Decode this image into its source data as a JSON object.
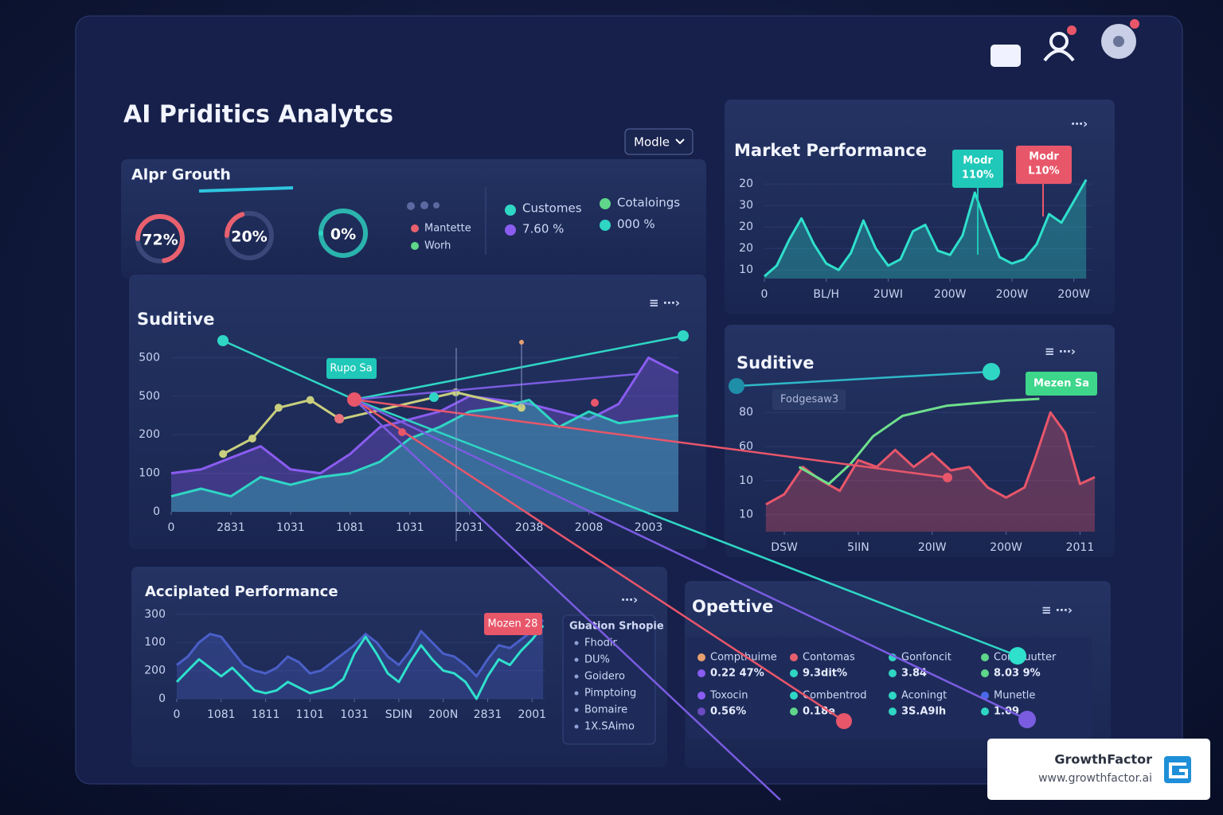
{
  "header": {
    "title": "AI Priditics Analytcs",
    "dropdown": "Modle"
  },
  "growth": {
    "title": "Alpr Grouth",
    "gauges": {
      "values": [
        72,
        20,
        0
      ],
      "value_labels": [
        "72%",
        "20%",
        "0%"
      ],
      "colors": [
        "#e8606e",
        "#e8606e",
        "#2fd6c4"
      ]
    },
    "legend": [
      {
        "label": "Mantette",
        "color": "#e8606e"
      },
      {
        "label": "Worh",
        "color": "#5fd68a"
      }
    ],
    "stats": [
      {
        "label": "Customes",
        "color": "#2fd6c4"
      },
      {
        "label": "7.60 %",
        "color": "#8a5cf0"
      },
      {
        "label": "Cotaloings",
        "color": "#5fd68a"
      },
      {
        "label": "000 %",
        "color": "#2fd6c4"
      }
    ]
  },
  "chart_data": [
    {
      "type": "line",
      "title": "Market Performance",
      "grid": true,
      "xlim": [
        0,
        5.3
      ],
      "ylim": [
        0.6,
        5.6
      ],
      "xticks": [
        {
          "value": 0,
          "label": "0"
        },
        {
          "value": 1,
          "label": "BL/H"
        },
        {
          "value": 2,
          "label": "2UWI"
        },
        {
          "value": 3,
          "label": "200W"
        },
        {
          "value": 4,
          "label": "200W"
        },
        {
          "value": 5,
          "label": "200W"
        }
      ],
      "yticks": [
        {
          "value": 1,
          "label": "10"
        },
        {
          "value": 2,
          "label": "20"
        },
        {
          "value": 3,
          "label": "20"
        },
        {
          "value": 4,
          "label": "30"
        },
        {
          "value": 5,
          "label": "20"
        }
      ],
      "x": [
        0,
        0.2,
        0.4,
        0.6,
        0.8,
        1.0,
        1.2,
        1.4,
        1.6,
        1.8,
        2.0,
        2.2,
        2.4,
        2.6,
        2.8,
        3.0,
        3.2,
        3.4,
        3.6,
        3.8,
        4.0,
        4.2,
        4.4,
        4.6,
        4.8,
        5.0,
        5.2
      ],
      "series": [
        {
          "color": "#2fe0cc",
          "area": true,
          "values": [
            0.7,
            1.2,
            2.4,
            3.4,
            2.2,
            1.3,
            1.0,
            1.8,
            3.3,
            2.0,
            1.2,
            1.5,
            2.8,
            3.1,
            1.9,
            1.7,
            2.6,
            4.6,
            3.0,
            1.6,
            1.3,
            1.5,
            2.2,
            3.6,
            3.2,
            4.2,
            5.2
          ]
        }
      ],
      "annotations": [
        {
          "lines": [
            "Modr",
            "110%"
          ],
          "color": "#1fc8b8"
        },
        {
          "lines": [
            "Modr",
            "L10%"
          ],
          "color": "#e8566a"
        }
      ]
    },
    {
      "type": "line",
      "title": "Suditive",
      "grid": true,
      "xlim": [
        0,
        8.5
      ],
      "ylim": [
        0,
        4.4
      ],
      "xticks": [
        {
          "value": 0,
          "label": "0"
        },
        {
          "value": 1,
          "label": "2831"
        },
        {
          "value": 2,
          "label": "1031"
        },
        {
          "value": 3,
          "label": "1081"
        },
        {
          "value": 4,
          "label": "1031"
        },
        {
          "value": 5,
          "label": "2031"
        },
        {
          "value": 6,
          "label": "2038"
        },
        {
          "value": 7,
          "label": "2008"
        },
        {
          "value": 8,
          "label": "2003"
        }
      ],
      "yticks": [
        {
          "value": 0,
          "label": "0"
        },
        {
          "value": 1,
          "label": "100"
        },
        {
          "value": 2,
          "label": "200"
        },
        {
          "value": 3,
          "label": "500"
        },
        {
          "value": 4,
          "label": "500"
        }
      ],
      "x": [
        0,
        0.5,
        1,
        1.5,
        2,
        2.5,
        3,
        3.5,
        4,
        4.5,
        5,
        5.5,
        6,
        6.5,
        7,
        7.5,
        8,
        8.5
      ],
      "series": [
        {
          "color": "#8a5cf0",
          "area": true,
          "values": [
            1.0,
            1.1,
            1.4,
            1.7,
            1.1,
            1.0,
            1.5,
            2.2,
            2.4,
            2.6,
            3.0,
            2.9,
            2.8,
            2.6,
            2.4,
            2.8,
            4.0,
            3.6
          ]
        },
        {
          "color": "#2fd6c4",
          "area": true,
          "values": [
            0.4,
            0.6,
            0.4,
            0.9,
            0.7,
            0.9,
            1.0,
            1.3,
            1.9,
            2.2,
            2.6,
            2.7,
            2.9,
            2.2,
            2.6,
            2.3,
            2.4,
            2.5
          ]
        },
        {
          "color": "#c9cf7e",
          "markers": true,
          "x": [
            0.87,
            1.36,
            1.8,
            2.33,
            2.83,
            4.77,
            5.87
          ],
          "values": [
            1.5,
            1.9,
            2.7,
            2.9,
            2.4,
            3.1,
            2.7
          ]
        }
      ],
      "annotations": [
        {
          "lines": [
            "Rupo Sa"
          ],
          "color": "#1fc8b8"
        }
      ]
    },
    {
      "type": "line",
      "title": "Suditive",
      "grid": true,
      "xlim": [
        -0.27,
        4.2
      ],
      "ylim": [
        0.5,
        4.8
      ],
      "xticks": [
        {
          "value": 0,
          "label": "DSW"
        },
        {
          "value": 1,
          "label": "5IIN"
        },
        {
          "value": 2,
          "label": "20IW"
        },
        {
          "value": 3,
          "label": "200W"
        },
        {
          "value": 4,
          "label": "2011"
        }
      ],
      "yticks": [
        {
          "value": 1,
          "label": "10"
        },
        {
          "value": 2,
          "label": "10"
        },
        {
          "value": 3,
          "label": "60"
        },
        {
          "value": 4,
          "label": "80"
        }
      ],
      "x": [
        -0.25,
        0,
        0.25,
        0.5,
        0.75,
        1,
        1.25,
        1.5,
        1.75,
        2,
        2.25,
        2.5,
        2.75,
        3,
        3.25,
        3.4,
        3.6,
        3.8,
        4,
        4.2
      ],
      "series": [
        {
          "color": "#e8566a",
          "area": true,
          "values": [
            1.3,
            1.6,
            2.4,
            2.0,
            1.7,
            2.6,
            2.4,
            2.9,
            2.4,
            2.8,
            2.3,
            2.4,
            1.8,
            1.5,
            1.8,
            2.7,
            4.0,
            3.4,
            1.9,
            2.1
          ]
        },
        {
          "color": "#6ee08c",
          "x": [
            0.2,
            0.6,
            0.9,
            1.2,
            1.6,
            2.2,
            3.0,
            3.45
          ],
          "values": [
            2.4,
            1.9,
            2.5,
            3.3,
            3.9,
            4.2,
            4.35,
            4.4
          ]
        }
      ],
      "annotations": [
        {
          "lines": [
            "Mezen Sa"
          ],
          "color": "#3dd68a"
        },
        {
          "lines": [
            "Fodgesaw3"
          ],
          "color": "#2a3a66"
        }
      ]
    },
    {
      "type": "line",
      "title": "Acciplated Performance",
      "grid": true,
      "xlim": [
        0,
        8.3
      ],
      "ylim": [
        0,
        3.05
      ],
      "xticks": [
        {
          "value": 0,
          "label": "0"
        },
        {
          "value": 1,
          "label": "1081"
        },
        {
          "value": 2,
          "label": "1811"
        },
        {
          "value": 3,
          "label": "1101"
        },
        {
          "value": 4,
          "label": "1031"
        },
        {
          "value": 5,
          "label": "SDIN"
        },
        {
          "value": 6,
          "label": "200N"
        },
        {
          "value": 7,
          "label": "2831"
        },
        {
          "value": 8,
          "label": "2001"
        }
      ],
      "yticks": [
        {
          "value": 0,
          "label": "0"
        },
        {
          "value": 1,
          "label": "200"
        },
        {
          "value": 2,
          "label": "100"
        },
        {
          "value": 3,
          "label": "300"
        }
      ],
      "x": [
        0,
        0.25,
        0.5,
        0.75,
        1,
        1.25,
        1.5,
        1.75,
        2,
        2.25,
        2.5,
        2.75,
        3,
        3.25,
        3.5,
        3.75,
        4,
        4.25,
        4.5,
        4.75,
        5,
        5.25,
        5.5,
        5.75,
        6,
        6.25,
        6.5,
        6.75,
        7,
        7.25,
        7.5,
        7.75,
        8,
        8.25
      ],
      "series": [
        {
          "color": "#4a5fc8",
          "area": true,
          "values": [
            1.2,
            1.5,
            2.0,
            2.3,
            2.2,
            1.7,
            1.2,
            1.0,
            0.9,
            1.1,
            1.5,
            1.3,
            0.9,
            1.0,
            1.3,
            1.6,
            1.9,
            2.3,
            2.0,
            1.5,
            1.2,
            1.7,
            2.4,
            2.0,
            1.6,
            1.5,
            1.2,
            0.8,
            1.4,
            1.9,
            1.8,
            2.1,
            2.4,
            2.8
          ]
        },
        {
          "color": "#2fe0cc",
          "values": [
            0.6,
            1.0,
            1.4,
            1.1,
            0.8,
            1.1,
            0.7,
            0.3,
            0.2,
            0.3,
            0.6,
            0.4,
            0.2,
            0.3,
            0.4,
            0.7,
            1.6,
            2.2,
            1.6,
            0.9,
            0.6,
            1.3,
            1.9,
            1.4,
            1.0,
            0.9,
            0.6,
            0.0,
            0.8,
            1.4,
            1.2,
            1.7,
            2.1,
            2.6
          ]
        }
      ],
      "annotations": [
        {
          "lines": [
            "Mozen 28"
          ],
          "color": "#e8566a"
        }
      ]
    }
  ],
  "side_list": {
    "title": "Gbation Srhopie",
    "items": [
      "Fhodir",
      "DU%",
      "Goidero",
      "Pimptoing",
      "Bomaire",
      "1X.SAimo"
    ]
  },
  "opettive": {
    "title": "Opettive",
    "items": [
      {
        "label": "Compthuime",
        "value": "0.22 47%",
        "color": "#e8a070",
        "value_color": "#8a5cf0"
      },
      {
        "label": "Contomas",
        "value": "9.3dit%",
        "color": "#e8606e",
        "value_color": "#2fd6c4"
      },
      {
        "label": "Gonfoncit",
        "value": "3.84",
        "color": "#2fd6c4",
        "value_color": "#2fd6c4"
      },
      {
        "label": "Contouutter",
        "value": "8.03 9%",
        "color": "#5fd68a",
        "value_color": "#5fd68a"
      },
      {
        "label": "Toxocin",
        "value": "0.56%",
        "color": "#8a5cf0",
        "value_color": "#6a4bc0"
      },
      {
        "label": "Combentrod",
        "value": "0.18e",
        "color": "#2fd6c4",
        "value_color": "#5fd68a"
      },
      {
        "label": "Aconingt",
        "value": "3S.A9lh",
        "color": "#2fd6c4",
        "value_color": "#2fd6c4"
      },
      {
        "label": "Munetle",
        "value": "1.09",
        "color": "#4a6ae8",
        "value_color": "#2fd6c4"
      }
    ]
  },
  "watermark": {
    "brand": "GrowthFactor",
    "url": "www.growthfactor.ai"
  }
}
